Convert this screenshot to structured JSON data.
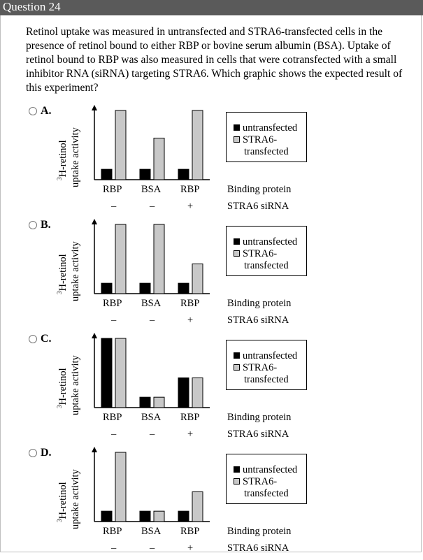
{
  "question": {
    "title": "Question 24",
    "text": "Retinol uptake was measured in untransfected and STRA6-transfected cells in the presence of retinol bound to either RBP or bovine serum albumin (BSA). Uptake of retinol bound to RBP was also measured in cells that were cotransfected with a small inhibitor RNA (siRNA) targeting STRA6. Which graphic shows the expected result of this experiment?"
  },
  "colors": {
    "untransfected": "#000000",
    "transfected": "#c8c8c8",
    "header_bg": "#5a5a5a"
  },
  "legend": {
    "untransfected": "untransfected",
    "transfected_line1": "STRA6-",
    "transfected_line2": "transfected"
  },
  "axis": {
    "ylabel_line1_sup": "3",
    "ylabel_line1": "H-retinol",
    "ylabel_line2": "uptake activity"
  },
  "x_labels": {
    "categories": [
      "RBP",
      "BSA",
      "RBP"
    ],
    "sirna": [
      "–",
      "–",
      "+"
    ],
    "binding_label": "Binding protein",
    "sirna_label": "STRA6 siRNA"
  },
  "options": [
    {
      "label": "A.",
      "chart_data": {
        "type": "bar",
        "categories": [
          "RBP –",
          "BSA –",
          "RBP +"
        ],
        "series": [
          {
            "name": "untransfected",
            "values": [
              0.15,
              0.15,
              0.15
            ]
          },
          {
            "name": "STRA6-transfected",
            "values": [
              1.0,
              0.6,
              1.0
            ]
          }
        ],
        "ylim": [
          0,
          1
        ]
      }
    },
    {
      "label": "B.",
      "chart_data": {
        "type": "bar",
        "categories": [
          "RBP –",
          "BSA –",
          "RBP +"
        ],
        "series": [
          {
            "name": "untransfected",
            "values": [
              0.15,
              0.15,
              0.15
            ]
          },
          {
            "name": "STRA6-transfected",
            "values": [
              1.0,
              1.0,
              0.43
            ]
          }
        ],
        "ylim": [
          0,
          1
        ]
      }
    },
    {
      "label": "C.",
      "chart_data": {
        "type": "bar",
        "categories": [
          "RBP –",
          "BSA –",
          "RBP +"
        ],
        "series": [
          {
            "name": "untransfected",
            "values": [
              1.0,
              0.15,
              0.43
            ]
          },
          {
            "name": "STRA6-transfected",
            "values": [
              1.0,
              0.15,
              0.43
            ]
          }
        ],
        "ylim": [
          0,
          1
        ]
      }
    },
    {
      "label": "D.",
      "chart_data": {
        "type": "bar",
        "categories": [
          "RBP –",
          "BSA –",
          "RBP +"
        ],
        "series": [
          {
            "name": "untransfected",
            "values": [
              0.15,
              0.15,
              0.15
            ]
          },
          {
            "name": "STRA6-transfected",
            "values": [
              1.0,
              0.15,
              0.43
            ]
          }
        ],
        "ylim": [
          0,
          1
        ]
      }
    }
  ]
}
